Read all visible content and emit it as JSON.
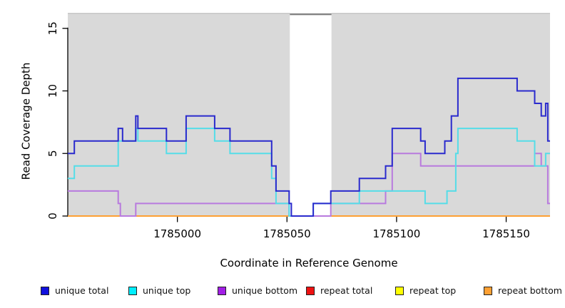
{
  "chart_data": {
    "type": "line",
    "subtype": "step-after",
    "title": "",
    "xlabel": "Coordinate in Reference Genome",
    "ylabel": "Read Coverage Depth",
    "x_range": [
      1784950,
      1785170
    ],
    "y_range": [
      0,
      16.2
    ],
    "x_ticks": [
      1785000,
      1785050,
      1785100,
      1785150
    ],
    "y_ticks": [
      0,
      5,
      10,
      15
    ],
    "grid": false,
    "plot_bg_color": "#d9d9d9",
    "plot_top_edge_color": "#c9c9c9",
    "highlight_band": {
      "x_start": 1785051.3,
      "x_end": 1785070.3,
      "fill": "#ffffff",
      "top_marker_color": "#858585"
    },
    "series": [
      {
        "name": "repeat total",
        "color": "#e60000",
        "points": [
          [
            1784950,
            0
          ],
          [
            1785170,
            0
          ]
        ]
      },
      {
        "name": "repeat top",
        "color": "#ffff00",
        "points": [
          [
            1784950,
            0
          ],
          [
            1785170,
            0
          ]
        ]
      },
      {
        "name": "repeat bottom",
        "color": "#ffa033",
        "points": [
          [
            1784950,
            0
          ],
          [
            1785170,
            0
          ]
        ]
      },
      {
        "name": "unique bottom",
        "color": "#b87ade",
        "points": [
          [
            1784950,
            2
          ],
          [
            1784973,
            1
          ],
          [
            1784974,
            0
          ],
          [
            1784981,
            1
          ],
          [
            1785051,
            0
          ],
          [
            1785070,
            1
          ],
          [
            1785095,
            2
          ],
          [
            1785098,
            5
          ],
          [
            1785111,
            4
          ],
          [
            1785163,
            5
          ],
          [
            1785166,
            4
          ],
          [
            1785169,
            1
          ],
          [
            1785170,
            1
          ]
        ]
      },
      {
        "name": "unique top",
        "color": "#55dde8",
        "points": [
          [
            1784950,
            3
          ],
          [
            1784953,
            4
          ],
          [
            1784973,
            6
          ],
          [
            1784981,
            7
          ],
          [
            1784982,
            6
          ],
          [
            1784995,
            5
          ],
          [
            1785004,
            7
          ],
          [
            1785017,
            6
          ],
          [
            1785024,
            5
          ],
          [
            1785043,
            3
          ],
          [
            1785045,
            1
          ],
          [
            1785051,
            0
          ],
          [
            1785062,
            1
          ],
          [
            1785083,
            2
          ],
          [
            1785113,
            1
          ],
          [
            1785123,
            2
          ],
          [
            1785127,
            5
          ],
          [
            1785128,
            7
          ],
          [
            1785155,
            6
          ],
          [
            1785163,
            4
          ],
          [
            1785168,
            5
          ],
          [
            1785170,
            5
          ]
        ]
      },
      {
        "name": "unique total",
        "color": "#2a2acd",
        "points": [
          [
            1784950,
            5
          ],
          [
            1784953,
            6
          ],
          [
            1784973,
            7
          ],
          [
            1784975,
            6
          ],
          [
            1784981,
            8
          ],
          [
            1784982,
            7
          ],
          [
            1784995,
            6
          ],
          [
            1785004,
            8
          ],
          [
            1785017,
            7
          ],
          [
            1785024,
            6
          ],
          [
            1785043,
            4
          ],
          [
            1785045,
            2
          ],
          [
            1785051,
            1
          ],
          [
            1785052,
            0
          ],
          [
            1785062,
            1
          ],
          [
            1785070,
            2
          ],
          [
            1785083,
            3
          ],
          [
            1785095,
            4
          ],
          [
            1785098,
            7
          ],
          [
            1785111,
            6
          ],
          [
            1785113,
            5
          ],
          [
            1785122,
            6
          ],
          [
            1785125,
            8
          ],
          [
            1785128,
            11
          ],
          [
            1785155,
            10
          ],
          [
            1785163,
            9
          ],
          [
            1785166,
            8
          ],
          [
            1785168,
            9
          ],
          [
            1785169,
            6
          ],
          [
            1785170,
            6
          ]
        ]
      }
    ],
    "legend": {
      "position": "bottom",
      "items": [
        {
          "label": "unique total",
          "swatch": "#1010dd"
        },
        {
          "label": "unique top",
          "swatch": "#00eeff"
        },
        {
          "label": "unique bottom",
          "swatch": "#a21ee6"
        },
        {
          "label": "repeat total",
          "swatch": "#ee1111"
        },
        {
          "label": "repeat top",
          "swatch": "#ffff00"
        },
        {
          "label": "repeat bottom",
          "swatch": "#ffa033"
        }
      ]
    }
  }
}
